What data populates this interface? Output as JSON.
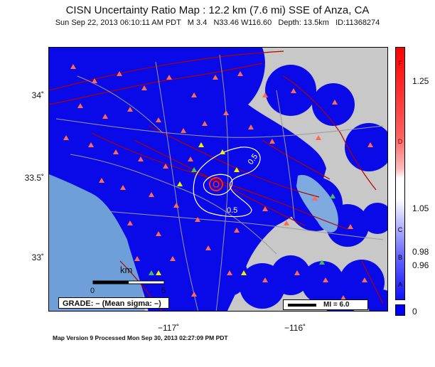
{
  "header": {
    "title": "CISN Uncertainty Ratio Map : 12.2 km (7.6 mi) SSE of Anza, CA",
    "subtitle": "Sun Sep 22, 2013 06:10:11 AM PDT   M 3.4   N33.46 W116.60   Depth: 13.5km   ID:11368274"
  },
  "axes": {
    "y_ticks": [
      "34˚",
      "33.5˚",
      "33˚"
    ],
    "x_ticks": [
      "−117˚",
      "−116˚"
    ]
  },
  "map": {
    "contour_labels": [
      "0.5",
      "0.5"
    ],
    "scale_bar": {
      "unit": "km",
      "start": "0",
      "end": "5"
    },
    "grade_text": "GRADE: – (Mean sigma: –)",
    "mi_legend": "MI = 6.0",
    "colors": {
      "ocean": "#6f9fd8",
      "land": "#c8c8c8",
      "lake": "#7eaae0",
      "uncertainty_low": "#0a0ae8",
      "fault": "#b00000",
      "roads": "#9a9a9a",
      "station": "#ff6a50",
      "station_alt": "#f0f000",
      "station_green": "#40c060",
      "epicenter": "#ff0000"
    }
  },
  "colorbar": {
    "letters": [
      "F",
      "D",
      "C",
      "B",
      "A"
    ],
    "values": [
      "1.25",
      "1.05",
      "0.98",
      "0.96",
      "0"
    ]
  },
  "footer": {
    "text": "Map Version 9 Processed Mon Sep 30, 2013 02:27:09 PM PDT"
  }
}
